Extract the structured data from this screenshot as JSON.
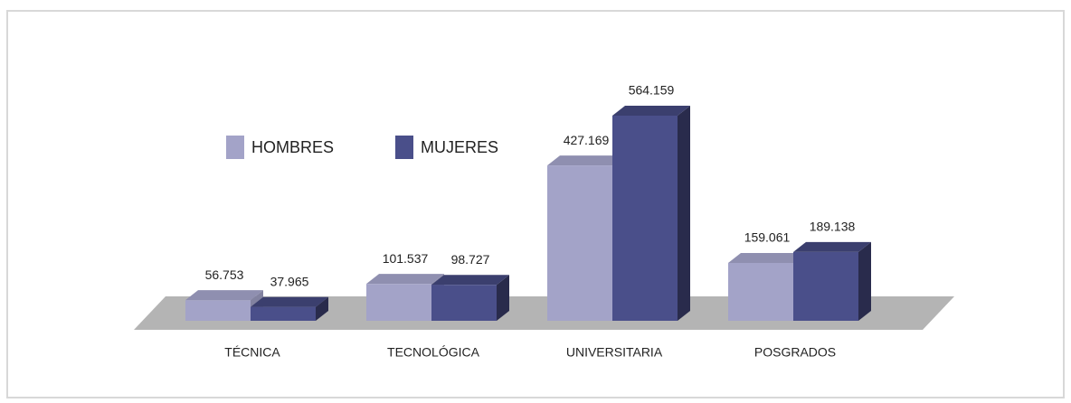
{
  "chart_data": {
    "type": "bar",
    "categories": [
      "TÉCNICA",
      "TECNOLÓGICA",
      "UNIVERSITARIA",
      "POSGRADOS"
    ],
    "series": [
      {
        "name": "HOMBRES",
        "color": "#a3a3c8",
        "values": [
          56753,
          101537,
          427169,
          159061
        ],
        "value_labels": [
          "56.753",
          "101.537",
          "427.169",
          "159.061"
        ]
      },
      {
        "name": "MUJERES",
        "color": "#4a4f8a",
        "values": [
          37965,
          98727,
          564159,
          189138
        ],
        "value_labels": [
          "37.965",
          "98.727",
          "564.159",
          "189.138"
        ]
      }
    ]
  }
}
